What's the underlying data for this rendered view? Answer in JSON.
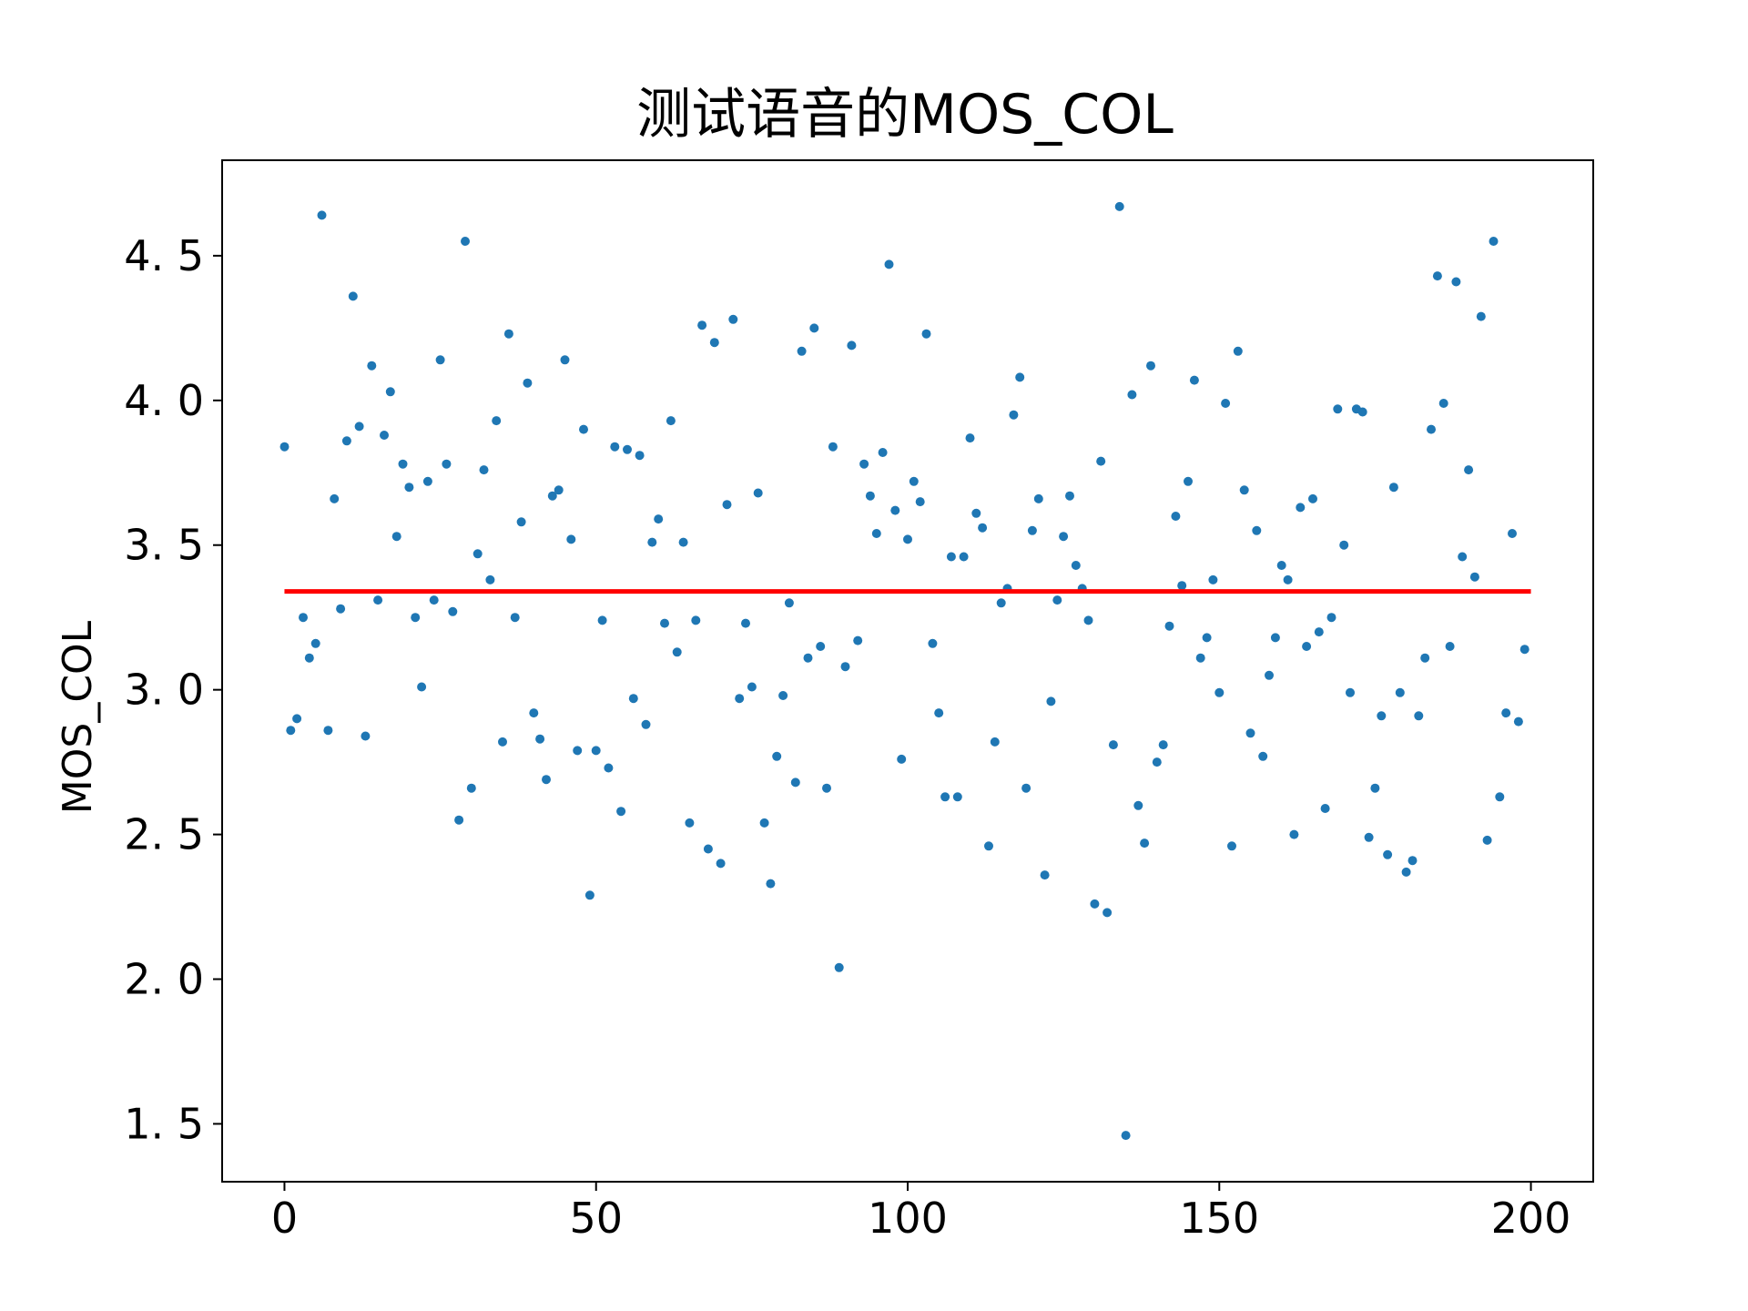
{
  "chart_data": {
    "type": "scatter",
    "title": "测试语音的MOS_COL",
    "xlabel": "",
    "ylabel": "MOS_COL",
    "xlim": [
      -10,
      210
    ],
    "ylim": [
      1.3,
      4.83
    ],
    "x_ticks": [
      0,
      50,
      100,
      150,
      200
    ],
    "y_ticks": [
      1.5,
      2.0,
      2.5,
      3.0,
      3.5,
      4.0,
      4.5
    ],
    "x_tick_labels": [
      "0",
      "50",
      "100",
      "150",
      "200"
    ],
    "y_tick_labels": [
      "1. 5",
      "2. 0",
      "2. 5",
      "3. 0",
      "3. 5",
      "4. 0",
      "4. 5"
    ],
    "grid": false,
    "point_color": "#1f77b4",
    "mean_line": {
      "value": 3.34,
      "x_start": 0,
      "x_end": 200,
      "color": "#ff0000"
    },
    "series": [
      {
        "x": [
          0,
          1,
          2,
          3,
          4,
          5,
          6,
          7,
          8,
          9,
          10,
          11,
          12,
          13,
          14,
          15,
          16,
          17,
          18,
          19,
          20,
          21,
          22,
          23,
          24,
          25,
          26,
          27,
          28,
          29,
          30,
          31,
          32,
          33,
          34,
          35,
          36,
          37,
          38,
          39,
          40,
          41,
          42,
          43,
          44,
          45,
          46,
          47,
          48,
          49,
          50,
          51,
          52,
          53,
          54,
          55,
          56,
          57,
          58,
          59,
          60,
          61,
          62,
          63,
          64,
          65,
          66,
          67,
          68,
          69,
          70,
          71,
          72,
          73,
          74,
          75,
          76,
          77,
          78,
          79,
          80,
          81,
          82,
          83,
          84,
          85,
          86,
          87,
          88,
          89,
          90,
          91,
          92,
          93,
          94,
          95,
          96,
          97,
          98,
          99,
          100,
          101,
          102,
          103,
          104,
          105,
          106,
          107,
          108,
          109,
          110,
          111,
          112,
          113,
          114,
          115,
          116,
          117,
          118,
          119,
          120,
          121,
          122,
          123,
          124,
          125,
          126,
          127,
          128,
          129,
          130,
          131,
          132,
          133,
          134,
          135,
          136,
          137,
          138,
          139,
          140,
          141,
          142,
          143,
          144,
          145,
          146,
          147,
          148,
          149,
          150,
          151,
          152,
          153,
          154,
          155,
          156,
          157,
          158,
          159,
          160,
          161,
          162,
          163,
          164,
          165,
          166,
          167,
          168,
          169,
          170,
          171,
          172,
          173,
          174,
          175,
          176,
          177,
          178,
          179,
          180,
          181,
          182,
          183,
          184,
          185,
          186,
          187,
          188,
          189,
          190,
          191,
          192,
          193,
          194,
          195,
          196,
          197,
          198,
          199
        ],
        "y": [
          3.84,
          2.86,
          2.9,
          3.25,
          3.11,
          3.16,
          4.64,
          2.86,
          3.66,
          3.28,
          3.86,
          4.36,
          3.91,
          2.84,
          4.12,
          3.31,
          3.88,
          4.03,
          3.53,
          3.78,
          3.7,
          3.25,
          3.01,
          3.72,
          3.31,
          4.14,
          3.78,
          3.27,
          2.55,
          4.55,
          2.66,
          3.47,
          3.76,
          3.38,
          3.93,
          2.82,
          4.23,
          3.25,
          3.58,
          4.06,
          2.92,
          2.83,
          2.69,
          3.67,
          3.69,
          4.14,
          3.52,
          2.79,
          3.9,
          2.29,
          2.79,
          3.24,
          2.73,
          3.84,
          2.58,
          3.83,
          2.97,
          3.81,
          2.88,
          3.51,
          3.59,
          3.23,
          3.93,
          3.13,
          3.51,
          2.54,
          3.24,
          4.26,
          2.45,
          4.2,
          2.4,
          3.64,
          4.28,
          2.97,
          3.23,
          3.01,
          3.68,
          2.54,
          2.33,
          2.77,
          2.98,
          3.3,
          2.68,
          4.17,
          3.11,
          4.25,
          3.15,
          2.66,
          3.84,
          2.04,
          3.08,
          4.19,
          3.17,
          3.78,
          3.67,
          3.54,
          3.82,
          4.47,
          3.62,
          2.76,
          3.52,
          3.72,
          3.65,
          4.23,
          3.16,
          2.92,
          2.63,
          3.46,
          2.63,
          3.46,
          3.87,
          3.61,
          3.56,
          2.46,
          2.82,
          3.3,
          3.35,
          3.95,
          4.08,
          2.66,
          3.55,
          3.66,
          2.36,
          2.96,
          3.31,
          3.53,
          3.67,
          3.43,
          3.35,
          3.24,
          2.26,
          3.79,
          2.23,
          2.81,
          4.67,
          1.46,
          4.02,
          2.6,
          2.47,
          4.12,
          2.75,
          2.81,
          3.22,
          3.6,
          3.36,
          3.72,
          4.07,
          3.11,
          3.18,
          3.38,
          2.99,
          3.99,
          2.46,
          4.17,
          3.69,
          2.85,
          3.55,
          2.77,
          3.05,
          3.18,
          3.43,
          3.38,
          2.5,
          3.63,
          3.15,
          3.66,
          3.2,
          2.59,
          3.25,
          3.97,
          3.5,
          2.99,
          3.97,
          3.96,
          2.49,
          2.66,
          2.91,
          2.43,
          3.7,
          2.99,
          2.37,
          2.41,
          2.91,
          3.11,
          3.9,
          4.43,
          3.99,
          3.15,
          4.41,
          3.46,
          3.76,
          3.39,
          4.29,
          2.48,
          4.55,
          2.63,
          2.92,
          3.54,
          2.89,
          3.14
        ]
      }
    ]
  }
}
